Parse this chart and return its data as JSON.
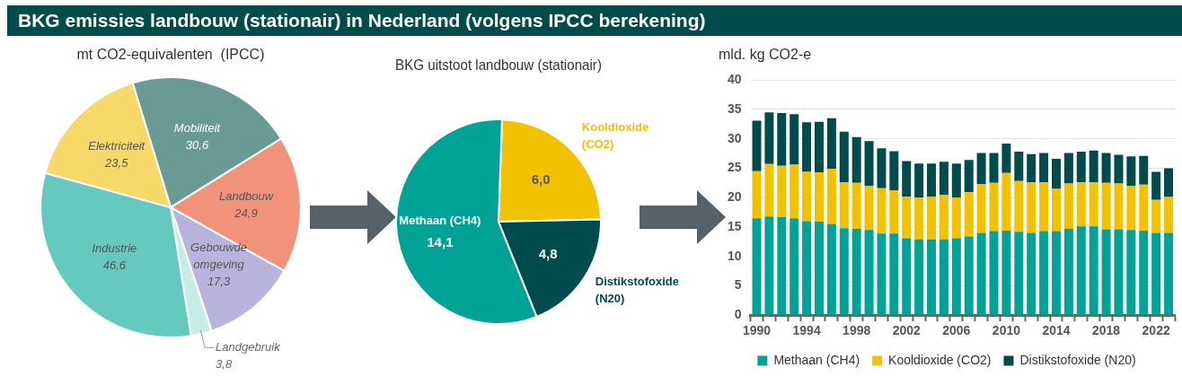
{
  "chart_data": [
    {
      "type": "pie",
      "title": "BKG emissies landbouw (stationair) in Nederland (volgens IPCC berekening)",
      "subtitle": "mt CO2-equivalenten  (IPCC)",
      "categories": [
        "Mobiliteit",
        "Landbouw",
        "Gebouwde omgeving",
        "Landgebruik",
        "Industrie",
        "Elektriciteit"
      ],
      "values": [
        30.6,
        24.9,
        17.3,
        3.8,
        46.6,
        23.5
      ],
      "value_labels": [
        "30,6",
        "24,9",
        "17,3",
        "3,8",
        "46,6",
        "23,5"
      ],
      "colors": [
        "#6a9a94",
        "#f0937a",
        "#b8b4dc",
        "#c8ebe6",
        "#66c9c0",
        "#f7d96a"
      ]
    },
    {
      "type": "pie",
      "title": "BKG uitstoot landbouw (stationair)",
      "categories": [
        "Kooldioxide (CO2)",
        "Distikstofoxide (N20)",
        "Methaan (CH4)"
      ],
      "values": [
        6.0,
        4.8,
        14.1
      ],
      "value_labels": [
        "6,0",
        "4,8",
        "14,1"
      ],
      "colors": [
        "#f2c200",
        "#004b4b",
        "#00a396"
      ]
    },
    {
      "type": "bar",
      "title": "mld. kg CO2-e",
      "stacked": true,
      "categories": [
        "1990",
        null,
        null,
        null,
        "1994",
        null,
        null,
        null,
        "1998",
        null,
        null,
        null,
        "2002",
        null,
        null,
        null,
        "2006",
        null,
        null,
        null,
        "2010",
        null,
        null,
        null,
        "2014",
        null,
        null,
        null,
        "2018",
        null,
        null,
        null,
        "2022",
        null
      ],
      "series": [
        {
          "name": "Methaan (CH4)",
          "color": "#00a396",
          "values": [
            16.5,
            16.8,
            16.7,
            16.5,
            16.0,
            15.9,
            15.5,
            14.8,
            14.7,
            14.5,
            13.9,
            13.9,
            13.1,
            12.9,
            12.9,
            12.9,
            13.1,
            13.4,
            14.0,
            14.3,
            14.4,
            14.2,
            14.0,
            14.3,
            14.3,
            14.7,
            15.1,
            15.1,
            14.6,
            14.6,
            14.5,
            14.4,
            14.0,
            14.0
          ]
        },
        {
          "name": "Kooldioxide (CO2)",
          "color": "#f2c200",
          "values": [
            8.0,
            8.9,
            8.7,
            9.1,
            8.4,
            8.4,
            9.4,
            7.8,
            7.8,
            7.5,
            7.7,
            7.3,
            7.1,
            7.1,
            7.3,
            7.6,
            6.9,
            7.5,
            8.3,
            8.2,
            9.8,
            8.6,
            8.6,
            8.3,
            7.2,
            7.7,
            7.5,
            7.5,
            7.9,
            7.8,
            7.5,
            7.8,
            5.6,
            6.1
          ]
        },
        {
          "name": "Distikstofoxide (N20)",
          "color": "#004b4b",
          "values": [
            8.6,
            8.8,
            9.0,
            8.6,
            8.4,
            8.6,
            8.6,
            8.6,
            7.8,
            7.6,
            6.8,
            6.7,
            6.0,
            5.8,
            5.6,
            5.6,
            5.8,
            5.5,
            5.3,
            5.1,
            5.0,
            5.0,
            4.8,
            5.0,
            5.1,
            5.2,
            5.2,
            5.4,
            5.1,
            4.9,
            5.0,
            4.9,
            4.8,
            4.9
          ]
        }
      ],
      "ylim": [
        0,
        40
      ],
      "yticks": [
        0,
        5,
        10,
        15,
        20,
        25,
        30,
        35,
        40
      ],
      "grid": "y",
      "legend": "bottom"
    }
  ]
}
